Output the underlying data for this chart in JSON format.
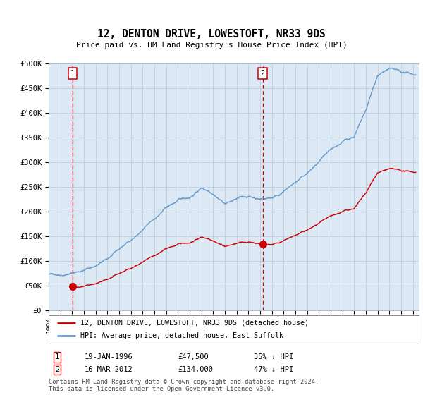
{
  "title": "12, DENTON DRIVE, LOWESTOFT, NR33 9DS",
  "subtitle": "Price paid vs. HM Land Registry's House Price Index (HPI)",
  "background_color": "#dce9f5",
  "ylim": [
    0,
    500000
  ],
  "yticks": [
    0,
    50000,
    100000,
    150000,
    200000,
    250000,
    300000,
    350000,
    400000,
    450000,
    500000
  ],
  "ytick_labels": [
    "£0",
    "£50K",
    "£100K",
    "£150K",
    "£200K",
    "£250K",
    "£300K",
    "£350K",
    "£400K",
    "£450K",
    "£500K"
  ],
  "xlim_start": 1994.0,
  "xlim_end": 2025.5,
  "xtick_years": [
    1994,
    1995,
    1996,
    1997,
    1998,
    1999,
    2000,
    2001,
    2002,
    2003,
    2004,
    2005,
    2006,
    2007,
    2008,
    2009,
    2010,
    2011,
    2012,
    2013,
    2014,
    2015,
    2016,
    2017,
    2018,
    2019,
    2020,
    2021,
    2022,
    2023,
    2024,
    2025
  ],
  "sale1_x": 1996.05,
  "sale1_y": 47500,
  "sale1_label": "1",
  "sale2_x": 2012.21,
  "sale2_y": 134000,
  "sale2_label": "2",
  "vline_color": "#cc0000",
  "point_color": "#cc0000",
  "point_size": 7,
  "hpi_line_color": "#6699cc",
  "price_line_color": "#cc0000",
  "hpi_annual_years": [
    1994,
    1995,
    1996,
    1997,
    1998,
    1999,
    2000,
    2001,
    2002,
    2003,
    2004,
    2005,
    2006,
    2007,
    2008,
    2009,
    2010,
    2011,
    2012,
    2013,
    2014,
    2015,
    2016,
    2017,
    2018,
    2019,
    2020,
    2021,
    2022,
    2023,
    2024,
    2025
  ],
  "hpi_annual_values": [
    72000,
    74000,
    79000,
    86000,
    95000,
    107000,
    124000,
    143000,
    163000,
    183000,
    205000,
    218000,
    225000,
    245000,
    238000,
    220000,
    228000,
    232000,
    228000,
    232000,
    245000,
    262000,
    278000,
    298000,
    315000,
    330000,
    342000,
    390000,
    460000,
    472000,
    460000,
    455000
  ],
  "legend_label_price": "12, DENTON DRIVE, LOWESTOFT, NR33 9DS (detached house)",
  "legend_label_hpi": "HPI: Average price, detached house, East Suffolk",
  "footnote1": "Contains HM Land Registry data © Crown copyright and database right 2024.",
  "footnote2": "This data is licensed under the Open Government Licence v3.0.",
  "table_row1_num": "1",
  "table_row1_date": "19-JAN-1996",
  "table_row1_price": "£47,500",
  "table_row1_hpi": "35% ↓ HPI",
  "table_row2_num": "2",
  "table_row2_date": "16-MAR-2012",
  "table_row2_price": "£134,000",
  "table_row2_hpi": "47% ↓ HPI"
}
